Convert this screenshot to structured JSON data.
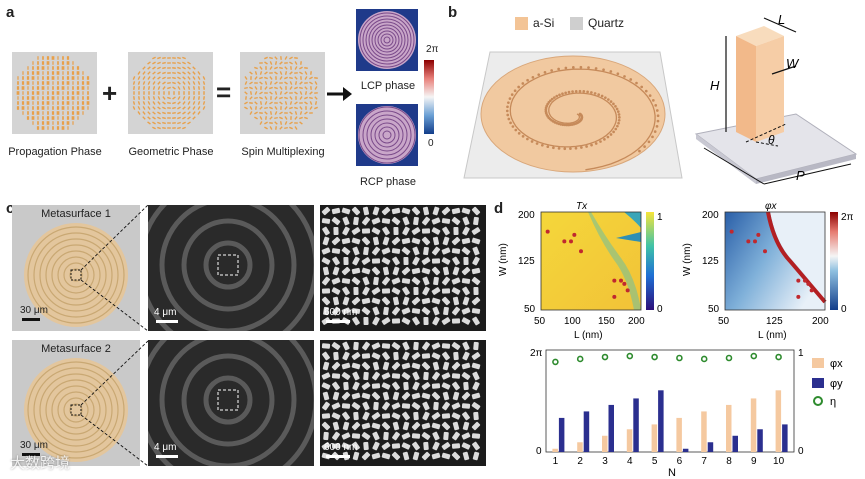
{
  "panels": {
    "a": {
      "label": "a",
      "captions": [
        "Propagation Phase",
        "Geometric Phase",
        "Spin Multiplexing"
      ],
      "plus": "+",
      "equals": "=",
      "lcp_label": "LCP phase",
      "rcp_label": "RCP phase",
      "colorbar_max": "2π",
      "colorbar_min": "0"
    },
    "b": {
      "label": "b",
      "legend_si": "a-Si",
      "legend_quartz": "Quartz",
      "dim_L": "L",
      "dim_H": "H",
      "dim_W": "W",
      "dim_theta": "θ",
      "dim_P": "P"
    },
    "c": {
      "label": "c",
      "meta1": "Metasurface 1",
      "meta2": "Metasurface 2",
      "scale_30": "30 μm",
      "scale_4": "4 μm",
      "scale_600": "600 nm"
    },
    "d": {
      "label": "d",
      "heat1_title": "Tx",
      "heat2_title": "φx",
      "heat_xlabel": "L (nm)",
      "heat_ylabel": "W (nm)",
      "heat_xticks": [
        "50",
        "125",
        "200"
      ],
      "heat_yticks": [
        "200",
        "125",
        "50"
      ],
      "heat_xticks_mid": [
        "50",
        "100",
        "150",
        "200"
      ],
      "cb1_ticks": [
        "1",
        "0"
      ],
      "cb2_ticks": [
        "2π",
        "0"
      ],
      "bar_xlabel": "N",
      "bar_yleft": [
        "2π",
        "0"
      ],
      "bar_yright": [
        "1",
        "0"
      ],
      "legend": [
        "φx",
        "φy",
        "η"
      ]
    }
  },
  "watermark": "大数跨境",
  "chart_data": {
    "type": "bar",
    "title": "",
    "xlabel": "N",
    "ylabel": "",
    "categories": [
      "1",
      "2",
      "3",
      "4",
      "5",
      "6",
      "7",
      "8",
      "9",
      "10"
    ],
    "ylim": [
      0,
      6.283
    ],
    "series": [
      {
        "name": "φx",
        "color": "#f5c9a0",
        "values": [
          0.2,
          0.6,
          1.0,
          1.4,
          1.7,
          2.1,
          2.5,
          2.9,
          3.3,
          3.8
        ]
      },
      {
        "name": "φy",
        "color": "#2b2f8f",
        "values": [
          2.1,
          2.5,
          2.9,
          3.3,
          3.8,
          0.2,
          0.6,
          1.0,
          1.4,
          1.7
        ]
      },
      {
        "name": "η",
        "color": "#2e8b2e",
        "marker": "circle",
        "values": [
          0.92,
          0.95,
          0.97,
          0.98,
          0.97,
          0.96,
          0.95,
          0.96,
          0.98,
          0.97
        ]
      }
    ]
  },
  "heatmap_points": {
    "L": [
      60,
      85,
      95,
      100,
      110,
      160,
      170,
      175,
      180,
      160
    ],
    "W": [
      170,
      155,
      155,
      165,
      140,
      95,
      95,
      90,
      80,
      70
    ]
  }
}
